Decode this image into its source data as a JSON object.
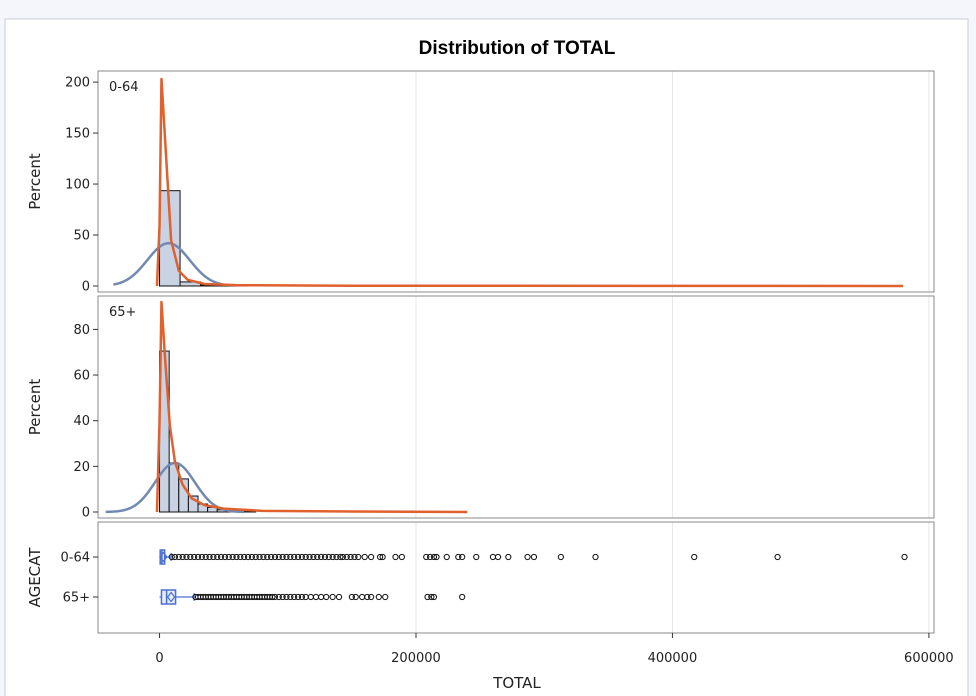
{
  "chart_data": {
    "type": "histogram_panel",
    "title": "Distribution of TOTAL",
    "xlabel": "TOTAL",
    "xlim": [
      -48000,
      604000
    ],
    "xticks": [
      0,
      200000,
      400000,
      600000
    ],
    "xtick_labels": [
      "0",
      "200000",
      "400000",
      "600000"
    ],
    "colors": {
      "background": "#f4f6fb",
      "panel": "#ffffff",
      "bar_fill": "#c9d3e3",
      "normal_curve": "#7189b3",
      "kernel_curve": "#e0602e",
      "box": "#4b6fd0",
      "grid": "#e6e6e6"
    },
    "panels": [
      {
        "label": "0-64",
        "ylabel": "Percent",
        "ylim": [
          0,
          205
        ],
        "yticks": [
          0,
          50,
          100,
          150,
          200
        ],
        "bin_width": 16000,
        "bins": [
          {
            "x": 0,
            "percent": 93.5
          },
          {
            "x": 16000,
            "percent": 4.0
          },
          {
            "x": 32000,
            "percent": 1.0
          },
          {
            "x": 48000,
            "percent": 0.5
          },
          {
            "x": 64000,
            "percent": 0.3
          }
        ],
        "normal_curve": {
          "mean": 7000,
          "sd": 16500,
          "peak_percent": 42,
          "x_range": [
            -36000,
            50000
          ]
        },
        "kernel_curve": [
          [
            -2000,
            0
          ],
          [
            0,
            60
          ],
          [
            1500,
            203
          ],
          [
            4500,
            140
          ],
          [
            9000,
            45
          ],
          [
            15000,
            15
          ],
          [
            22000,
            6
          ],
          [
            35000,
            2
          ],
          [
            60000,
            0.8
          ],
          [
            150000,
            0.3
          ],
          [
            580000,
            0
          ]
        ]
      },
      {
        "label": "65+",
        "ylabel": "Percent",
        "ylim": [
          0,
          92
        ],
        "yticks": [
          0,
          20,
          40,
          60,
          80
        ],
        "bin_width": 7500,
        "bins": [
          {
            "x": 0,
            "percent": 70.5
          },
          {
            "x": 7500,
            "percent": 21.5
          },
          {
            "x": 15000,
            "percent": 14.5
          },
          {
            "x": 22500,
            "percent": 7.0
          },
          {
            "x": 30000,
            "percent": 3.5
          },
          {
            "x": 37500,
            "percent": 2.0
          },
          {
            "x": 45000,
            "percent": 1.0
          },
          {
            "x": 52500,
            "percent": 0.6
          },
          {
            "x": 60000,
            "percent": 0.4
          },
          {
            "x": 67500,
            "percent": 0.2
          }
        ],
        "normal_curve": {
          "mean": 12000,
          "sd": 15500,
          "peak_percent": 21.5,
          "x_range": [
            -42000,
            66000
          ]
        },
        "kernel_curve": [
          [
            -2000,
            0
          ],
          [
            0,
            40
          ],
          [
            1500,
            92
          ],
          [
            4000,
            70
          ],
          [
            8000,
            38
          ],
          [
            12000,
            22
          ],
          [
            18000,
            12
          ],
          [
            25000,
            6
          ],
          [
            35000,
            3
          ],
          [
            50000,
            1.5
          ],
          [
            80000,
            0.5
          ],
          [
            150000,
            0.2
          ],
          [
            240000,
            0
          ]
        ]
      }
    ],
    "boxplot": {
      "ylabel": "AGECAT",
      "categories": [
        {
          "label": "0-64",
          "box": {
            "q1": 500,
            "median": 1800,
            "q3": 4000,
            "whisker_low": 0,
            "whisker_high": 9000,
            "mean": 3000
          },
          "outliers": [
            9500,
            12000,
            15000,
            18000,
            21000,
            24000,
            27000,
            30000,
            33000,
            36000,
            39000,
            42000,
            45000,
            48000,
            51000,
            54000,
            57000,
            60000,
            63000,
            66000,
            69000,
            72000,
            75000,
            78000,
            81000,
            84000,
            87000,
            90000,
            93000,
            96000,
            99000,
            102000,
            105000,
            108000,
            111000,
            114000,
            117000,
            120000,
            123000,
            126000,
            129000,
            132000,
            135000,
            138000,
            141000,
            143000,
            146000,
            149000,
            152000,
            155000,
            160000,
            165000,
            172000,
            174000,
            184000,
            189000,
            208000,
            211000,
            214000,
            216000,
            224000,
            233000,
            236000,
            247000,
            260000,
            264000,
            272000,
            287000,
            292000,
            313000,
            340000,
            417000,
            482000,
            581000
          ]
        },
        {
          "label": "65+",
          "box": {
            "q1": 1500,
            "median": 5500,
            "q3": 12500,
            "whisker_low": 0,
            "whisker_high": 27000,
            "mean": 9000
          },
          "outliers": [
            28000,
            30000,
            32000,
            34000,
            36000,
            38000,
            40000,
            42000,
            44000,
            46000,
            48000,
            50000,
            52000,
            54000,
            56000,
            58000,
            60000,
            62000,
            64000,
            66000,
            68000,
            70000,
            72000,
            74000,
            76000,
            78000,
            80000,
            82000,
            84000,
            86000,
            88000,
            90000,
            93000,
            96000,
            99000,
            102000,
            105000,
            108000,
            111000,
            114000,
            118000,
            122000,
            126000,
            130000,
            135000,
            140000,
            150000,
            153000,
            158000,
            162000,
            165000,
            171000,
            176000,
            209000,
            212000,
            214000,
            236000
          ]
        }
      ]
    }
  }
}
